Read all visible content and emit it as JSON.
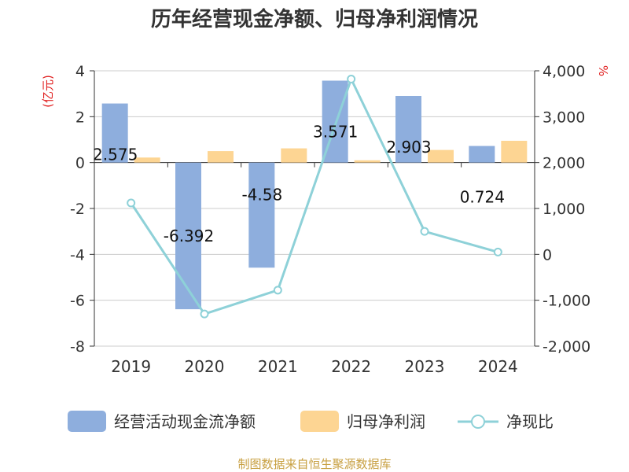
{
  "chart_data": {
    "type": "bar",
    "title": "历年经营现金净额、归母净利润情况",
    "categories": [
      "2019",
      "2020",
      "2021",
      "2022",
      "2023",
      "2024"
    ],
    "series": [
      {
        "name": "经营活动现金流净额",
        "type": "bar",
        "axis": "left",
        "color": "#8eaedd",
        "values": [
          2.575,
          -6.392,
          -4.58,
          3.571,
          2.903,
          0.724
        ]
      },
      {
        "name": "归母净利润",
        "type": "bar",
        "axis": "left",
        "color": "#fdd593",
        "values": [
          0.22,
          0.5,
          0.62,
          0.1,
          0.55,
          0.95
        ]
      },
      {
        "name": "净现比",
        "type": "line",
        "axis": "right",
        "color": "#8ed1d8",
        "values": [
          1120,
          -1300,
          -780,
          3820,
          500,
          50
        ]
      }
    ],
    "data_labels": [
      "2.575",
      "-6.392",
      "-4.58",
      "3.571",
      "2.903",
      "0.724"
    ],
    "left_axis": {
      "unit": "(亿元)",
      "ylim": [
        -8,
        4
      ],
      "ticks": [
        "4",
        "2",
        "0",
        "-2",
        "-4",
        "-6",
        "-8"
      ]
    },
    "right_axis": {
      "unit": "%",
      "ylim": [
        -2000,
        4000
      ],
      "ticks": [
        "4,000",
        "3,000",
        "2,000",
        "1,000",
        "0",
        "-1,000",
        "-2,000"
      ]
    },
    "legend": {
      "position": "bottom",
      "items": [
        "经营活动现金流净额",
        "归母净利润",
        "净现比"
      ]
    },
    "source": "制图数据来自恒生聚源数据库"
  }
}
